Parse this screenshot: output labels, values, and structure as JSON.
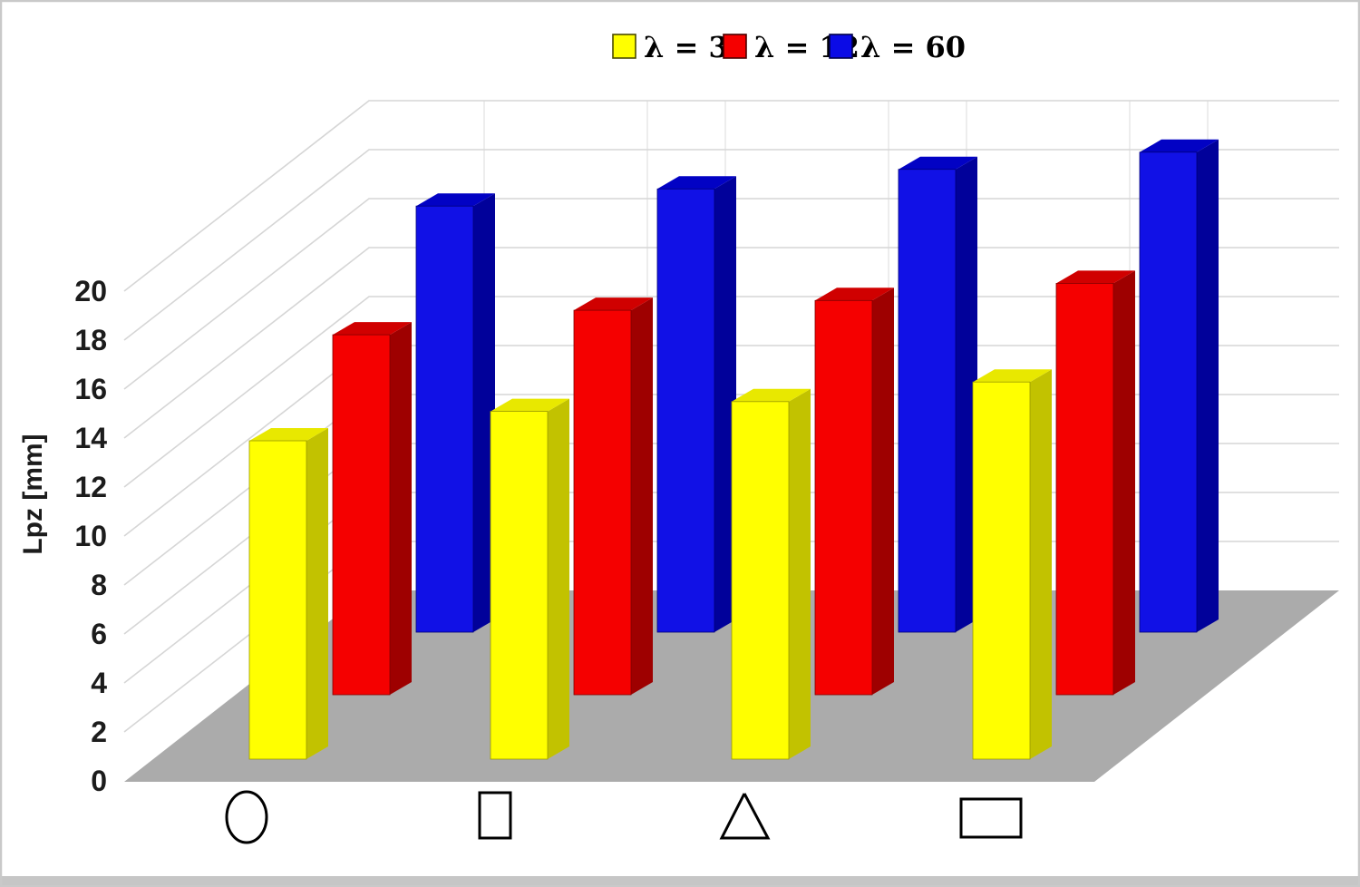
{
  "figure": {
    "type_note": "3D column chart (Excel-style) on white background with gray floor",
    "border_color": "#c9c9c9",
    "bottom_band_color": "#c6c6c6",
    "background": "#ffffff"
  },
  "legend": {
    "position": "top-center",
    "items": [
      {
        "label": "λ = 3",
        "color": "#FFFF00",
        "swatch_border": "#4a4a00"
      },
      {
        "label": "λ = 12",
        "color": "#F50000",
        "swatch_border": "#4a0000"
      },
      {
        "label": "λ = 60",
        "color": "#0B0BE6",
        "swatch_border": "#00004a"
      }
    ]
  },
  "y_axis": {
    "title": "Lpz [mm]",
    "ticks": [
      "0",
      "2",
      "4",
      "6",
      "8",
      "10",
      "12",
      "14",
      "16",
      "18",
      "20"
    ],
    "min": 0,
    "max": 20,
    "step": 2
  },
  "x_axis": {
    "symbols": [
      {
        "name": "circle-symbol",
        "shape": "circle"
      },
      {
        "name": "vertical-rectangle-symbol",
        "shape": "vertical rectangle"
      },
      {
        "name": "triangle-symbol",
        "shape": "triangle"
      },
      {
        "name": "horizontal-rectangle-symbol",
        "shape": "horizontal rectangle"
      }
    ]
  },
  "chart_data": {
    "type": "bar",
    "style": "3d-column",
    "title": "",
    "xlabel": "",
    "ylabel": "Lpz [mm]",
    "ylim": [
      0,
      20
    ],
    "ytick_step": 2,
    "grid": true,
    "legend_position": "top",
    "categories": [
      "circle",
      "vertical rectangle",
      "triangle",
      "horizontal rectangle"
    ],
    "series": [
      {
        "name": "λ = 3",
        "depth_row": "front",
        "color": "#FFFF00",
        "values": [
          13.0,
          14.2,
          14.6,
          15.4
        ]
      },
      {
        "name": "λ = 12",
        "depth_row": "middle",
        "color": "#F50000",
        "values": [
          14.7,
          15.7,
          16.1,
          16.8
        ]
      },
      {
        "name": "λ = 60",
        "depth_row": "back",
        "color": "#0B0BE6",
        "values": [
          17.4,
          18.1,
          18.9,
          19.6
        ]
      }
    ]
  },
  "colors": {
    "floor": "#ABABAB",
    "gridline": "#D6D6D6",
    "wall_line": "#E3E3E3",
    "symbol_stroke": "#000000",
    "series_shades": [
      {
        "front": "#FFFF00",
        "top": "#E8E800",
        "side": "#C2C200",
        "edge": "#9a9a00"
      },
      {
        "front": "#F50000",
        "top": "#D00000",
        "side": "#9E0000",
        "edge": "#800000"
      },
      {
        "front": "#1111E6",
        "top": "#0202C4",
        "side": "#01019A",
        "edge": "#000078"
      }
    ]
  }
}
